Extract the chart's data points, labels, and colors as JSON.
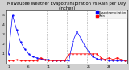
{
  "title": "Milwaukee Weather Evapotranspiration vs Rain per Day (Inches)",
  "legend_labels": [
    "Evapotranspiration",
    "Rain"
  ],
  "legend_colors": [
    "#0000ff",
    "#ff0000"
  ],
  "background_color": "#d0d0d0",
  "plot_bg": "#ffffff",
  "vlines_x": [
    5.5,
    10.5,
    15.5,
    20.5,
    25.5
  ],
  "et_x": [
    1,
    2,
    3,
    4,
    5,
    6,
    7,
    8,
    9,
    10,
    11,
    12,
    13,
    14,
    15,
    16,
    17,
    18,
    19,
    20,
    21,
    22,
    23,
    24,
    25,
    26,
    27,
    28,
    29,
    30
  ],
  "et_y": [
    0.1,
    0.5,
    0.35,
    0.22,
    0.15,
    0.1,
    0.07,
    0.06,
    0.05,
    0.04,
    0.04,
    0.03,
    0.03,
    0.03,
    0.03,
    0.03,
    0.23,
    0.33,
    0.26,
    0.18,
    0.12,
    0.07,
    0.05,
    0.04,
    0.04,
    0.03,
    0.03,
    0.03,
    0.03,
    0.03
  ],
  "rain_x": [
    1,
    2,
    3,
    4,
    5,
    6,
    7,
    8,
    9,
    10,
    11,
    12,
    13,
    14,
    15,
    16,
    17,
    18,
    19,
    20,
    21,
    22,
    23,
    24,
    25,
    26,
    27,
    28,
    29,
    30
  ],
  "rain_y": [
    0.03,
    0.03,
    0.04,
    0.03,
    0.03,
    0.03,
    0.03,
    0.03,
    0.06,
    0.04,
    0.03,
    0.03,
    0.03,
    0.03,
    0.03,
    0.1,
    0.1,
    0.1,
    0.1,
    0.1,
    0.1,
    0.1,
    0.1,
    0.06,
    0.04,
    0.06,
    0.04,
    0.06,
    0.04,
    0.03
  ],
  "ylim": [
    0,
    0.55
  ],
  "xlim": [
    0.5,
    30.5
  ],
  "xtick_positions": [
    1,
    2,
    3,
    4,
    5,
    6,
    7,
    8,
    9,
    10,
    11,
    12,
    13,
    14,
    15,
    16,
    17,
    18,
    19,
    20,
    21,
    22,
    23,
    24,
    25,
    26,
    27,
    28,
    29,
    30
  ],
  "xtick_labels": [
    "1",
    "",
    "",
    "",
    "",
    "6",
    "",
    "",
    "",
    "",
    "11",
    "",
    "",
    "",
    "",
    "16",
    "",
    "",
    "",
    "",
    "21",
    "",
    "",
    "",
    "",
    "26",
    "",
    "",
    "",
    ""
  ],
  "ytick_positions": [
    0.1,
    0.2,
    0.3,
    0.4,
    0.5
  ],
  "ytick_labels": [
    ".1",
    ".2",
    ".3",
    ".4",
    ".5"
  ],
  "title_fontsize": 3.8,
  "tick_fontsize": 3.0,
  "legend_fontsize": 2.5,
  "linewidth": 0.5,
  "markersize": 1.2
}
